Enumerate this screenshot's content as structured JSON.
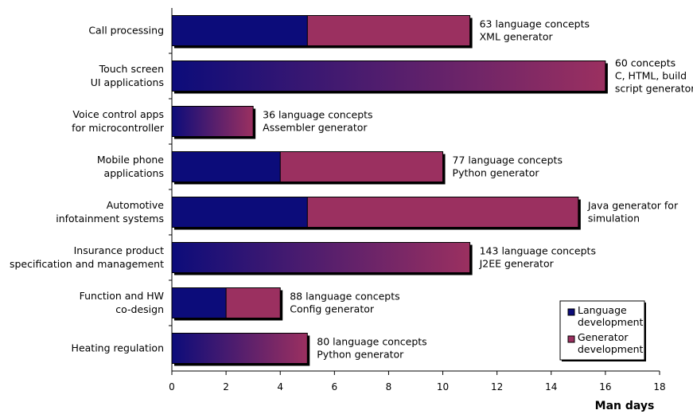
{
  "chart_data": {
    "type": "bar",
    "orientation": "horizontal",
    "stacked": true,
    "categories": [
      [
        "Call processing"
      ],
      [
        "Touch screen",
        "UI applications"
      ],
      [
        "Voice control apps",
        "for microcontroller"
      ],
      [
        "Mobile phone",
        "applications"
      ],
      [
        "Automotive",
        "infotainment systems"
      ],
      [
        "Insurance product",
        "specification and management"
      ],
      [
        "Function and HW",
        "co-design"
      ],
      [
        "Heating regulation"
      ]
    ],
    "series": [
      {
        "name": "Language development",
        "values": [
          5,
          0,
          0,
          4,
          5,
          0,
          2,
          0
        ]
      },
      {
        "name": "Generator development",
        "values": [
          6,
          0,
          0,
          6,
          10,
          0,
          2,
          0
        ]
      }
    ],
    "combined_totals": [
      null,
      16,
      3,
      null,
      null,
      11,
      null,
      5
    ],
    "gradient_bar": [
      false,
      true,
      true,
      false,
      false,
      true,
      false,
      true
    ],
    "annotations": [
      [
        "63 language concepts",
        "XML generator"
      ],
      [
        "60 concepts",
        "C, HTML,  build",
        "script generators"
      ],
      [
        "36 language concepts",
        "Assembler generator"
      ],
      [
        "77 language concepts",
        "Python generator"
      ],
      [
        "Java generator for",
        "simulation"
      ],
      [
        "143 language concepts",
        "J2EE generator"
      ],
      [
        "88 language concepts",
        "Config generator"
      ],
      [
        "80 language concepts",
        "Python generator"
      ]
    ],
    "xlabel": "Man days",
    "xlim": [
      0,
      18
    ],
    "xticks": [
      0,
      2,
      4,
      6,
      8,
      10,
      12,
      14,
      16,
      18
    ],
    "grid": false,
    "legend": {
      "position": "bottom-right",
      "entries": [
        {
          "label": [
            "Language",
            "development"
          ],
          "color": "#0c0c7a"
        },
        {
          "label": [
            "Generator",
            "development"
          ],
          "color": "#9b3060"
        }
      ]
    }
  }
}
